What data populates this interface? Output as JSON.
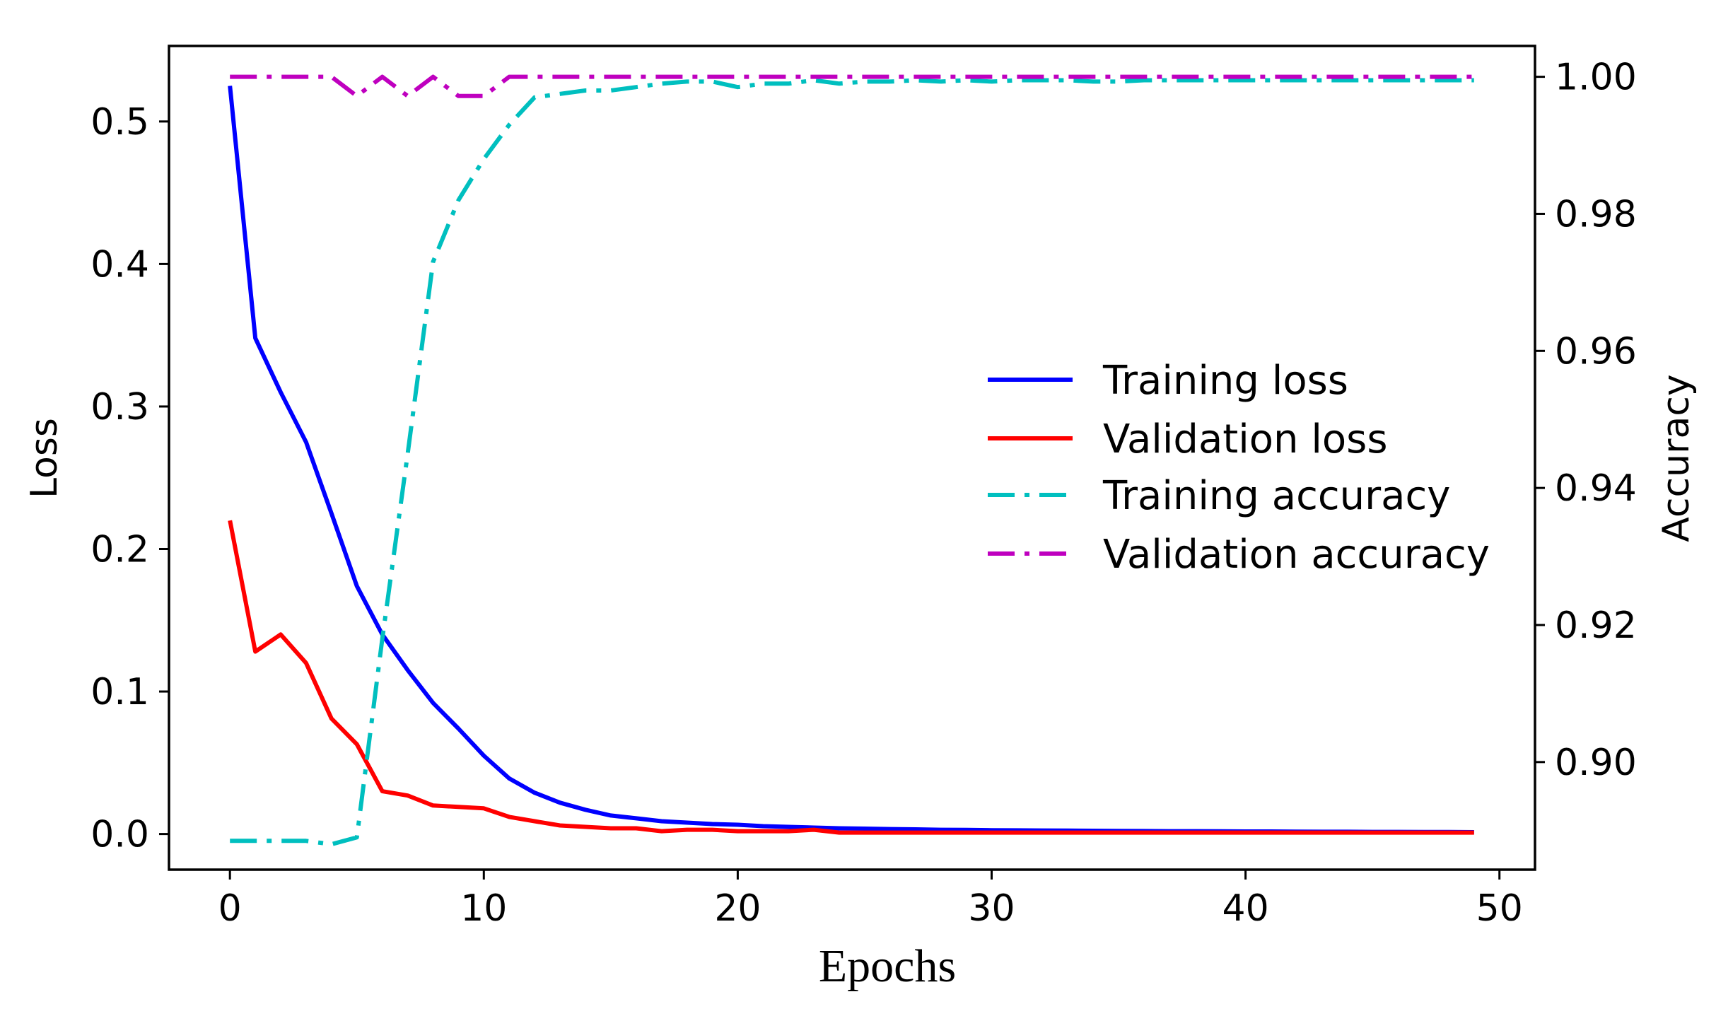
{
  "chart_data": {
    "type": "line",
    "xlabel": "Epochs",
    "ylabel_left": "Loss",
    "ylabel_right": "Accuracy",
    "xlim": [
      -2.4,
      51.4
    ],
    "ylim_left": [
      -0.025,
      0.553
    ],
    "ylim_right": [
      0.8843,
      1.0045
    ],
    "xticks": [
      0,
      10,
      20,
      30,
      40,
      50
    ],
    "xtick_labels": [
      "0",
      "10",
      "20",
      "30",
      "40",
      "50"
    ],
    "yticks_left": [
      0.0,
      0.1,
      0.2,
      0.3,
      0.4,
      0.5
    ],
    "ytick_labels_left": [
      "0.0",
      "0.1",
      "0.2",
      "0.3",
      "0.4",
      "0.5"
    ],
    "yticks_right": [
      0.9,
      0.92,
      0.94,
      0.96,
      0.98,
      1.0
    ],
    "ytick_labels_right": [
      "0.90",
      "0.92",
      "0.94",
      "0.96",
      "0.98",
      "1.00"
    ],
    "legend_position": "center-right",
    "series": [
      {
        "name": "Training loss",
        "axis": "left",
        "color": "#0000ff",
        "style": "solid",
        "x": [
          0,
          1,
          2,
          3,
          4,
          5,
          6,
          7,
          8,
          9,
          10,
          11,
          12,
          13,
          14,
          15,
          16,
          17,
          18,
          19,
          20,
          21,
          22,
          23,
          24,
          25,
          26,
          27,
          28,
          29,
          30,
          31,
          32,
          33,
          34,
          35,
          36,
          37,
          38,
          39,
          40,
          41,
          42,
          43,
          44,
          45,
          46,
          47,
          48,
          49
        ],
        "values": [
          0.525,
          0.348,
          0.31,
          0.275,
          0.225,
          0.174,
          0.14,
          0.115,
          0.092,
          0.074,
          0.055,
          0.039,
          0.029,
          0.022,
          0.017,
          0.013,
          0.011,
          0.009,
          0.008,
          0.007,
          0.0065,
          0.0055,
          0.005,
          0.0045,
          0.004,
          0.0038,
          0.0035,
          0.0033,
          0.003,
          0.0029,
          0.0027,
          0.0026,
          0.0025,
          0.0024,
          0.0023,
          0.0022,
          0.0021,
          0.002,
          0.002,
          0.0019,
          0.0018,
          0.0018,
          0.0017,
          0.0016,
          0.0016,
          0.0015,
          0.0015,
          0.0014,
          0.0014,
          0.0013
        ]
      },
      {
        "name": "Validation loss",
        "axis": "left",
        "color": "#ff0000",
        "style": "solid",
        "x": [
          0,
          1,
          2,
          3,
          4,
          5,
          6,
          7,
          8,
          9,
          10,
          11,
          12,
          13,
          14,
          15,
          16,
          17,
          18,
          19,
          20,
          21,
          22,
          23,
          24,
          25,
          26,
          27,
          28,
          29,
          30,
          31,
          32,
          33,
          34,
          35,
          36,
          37,
          38,
          39,
          40,
          41,
          42,
          43,
          44,
          45,
          46,
          47,
          48,
          49
        ],
        "values": [
          0.22,
          0.128,
          0.14,
          0.12,
          0.081,
          0.063,
          0.03,
          0.027,
          0.02,
          0.019,
          0.018,
          0.012,
          0.009,
          0.006,
          0.005,
          0.004,
          0.004,
          0.002,
          0.003,
          0.003,
          0.002,
          0.002,
          0.002,
          0.003,
          0.001,
          0.001,
          0.001,
          0.001,
          0.001,
          0.001,
          0.001,
          0.001,
          0.001,
          0.001,
          0.001,
          0.001,
          0.001,
          0.001,
          0.001,
          0.001,
          0.001,
          0.001,
          0.001,
          0.001,
          0.001,
          0.001,
          0.001,
          0.001,
          0.001,
          0.001
        ]
      },
      {
        "name": "Training accuracy",
        "axis": "right",
        "color": "#00bfbf",
        "style": "dashdot",
        "x": [
          0,
          1,
          2,
          3,
          4,
          5,
          6,
          7,
          8,
          9,
          10,
          11,
          12,
          13,
          14,
          15,
          16,
          17,
          18,
          19,
          20,
          21,
          22,
          23,
          24,
          25,
          26,
          27,
          28,
          29,
          30,
          31,
          32,
          33,
          34,
          35,
          36,
          37,
          38,
          39,
          40,
          41,
          42,
          43,
          44,
          45,
          46,
          47,
          48,
          49
        ],
        "values": [
          0.8885,
          0.8885,
          0.8885,
          0.8885,
          0.888,
          0.889,
          0.918,
          0.945,
          0.973,
          0.982,
          0.988,
          0.993,
          0.997,
          0.9975,
          0.998,
          0.998,
          0.9985,
          0.999,
          0.9993,
          0.9993,
          0.9985,
          0.999,
          0.999,
          0.9995,
          0.999,
          0.9993,
          0.9993,
          0.9995,
          0.9993,
          0.9995,
          0.9993,
          0.9995,
          0.9995,
          0.9995,
          0.9993,
          0.9993,
          0.9995,
          0.9995,
          0.9995,
          0.9995,
          0.9995,
          0.9995,
          0.9995,
          0.9995,
          0.9995,
          0.9995,
          0.9995,
          0.9995,
          0.9995,
          0.9995
        ]
      },
      {
        "name": "Validation accuracy",
        "axis": "right",
        "color": "#bf00bf",
        "style": "dashdot",
        "x": [
          0,
          1,
          2,
          3,
          4,
          5,
          6,
          7,
          8,
          9,
          10,
          11,
          12,
          13,
          14,
          15,
          16,
          17,
          18,
          19,
          20,
          21,
          22,
          23,
          24,
          25,
          26,
          27,
          28,
          29,
          30,
          31,
          32,
          33,
          34,
          35,
          36,
          37,
          38,
          39,
          40,
          41,
          42,
          43,
          44,
          45,
          46,
          47,
          48,
          49
        ],
        "values": [
          1.0,
          1.0,
          1.0,
          1.0,
          1.0,
          0.9972,
          1.0,
          0.9972,
          1.0,
          0.9972,
          0.9972,
          1.0,
          1.0,
          1.0,
          1.0,
          1.0,
          1.0,
          1.0,
          1.0,
          1.0,
          1.0,
          1.0,
          1.0,
          1.0,
          1.0,
          1.0,
          1.0,
          1.0,
          1.0,
          1.0,
          1.0,
          1.0,
          1.0,
          1.0,
          1.0,
          1.0,
          1.0,
          1.0,
          1.0,
          1.0,
          1.0,
          1.0,
          1.0,
          1.0,
          1.0,
          1.0,
          1.0,
          1.0,
          1.0,
          1.0
        ]
      }
    ]
  }
}
